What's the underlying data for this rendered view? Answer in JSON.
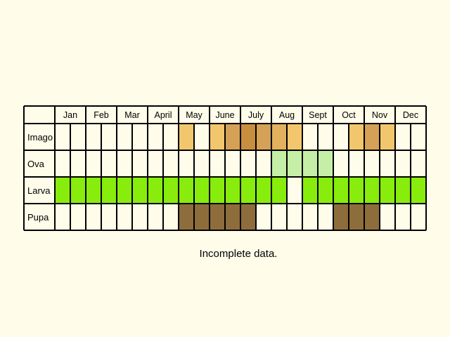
{
  "months": [
    "Jan",
    "Feb",
    "Mar",
    "April",
    "May",
    "June",
    "July",
    "Aug",
    "Sept",
    "Oct",
    "Nov",
    "Dec"
  ],
  "rows": [
    {
      "label": "Imago",
      "segments": [
        {
          "slot": 8,
          "color": "#f2c66c"
        },
        {
          "slot": 10,
          "color": "#f2c66c"
        },
        {
          "slot": 11,
          "color": "#d4a157"
        },
        {
          "slot": 12,
          "color": "#c88e3f"
        },
        {
          "slot": 13,
          "color": "#d4a157"
        },
        {
          "slot": 14,
          "color": "#e3b05e"
        },
        {
          "slot": 15,
          "color": "#f2c66c"
        },
        {
          "slot": 19,
          "color": "#f2c66c"
        },
        {
          "slot": 20,
          "color": "#d4a157"
        },
        {
          "slot": 21,
          "color": "#f2c66c"
        }
      ]
    },
    {
      "label": "Ova",
      "segments": [
        {
          "slot": 14,
          "color": "#c5eea6"
        },
        {
          "slot": 15,
          "color": "#c5eea6"
        },
        {
          "slot": 16,
          "color": "#c5eea6"
        },
        {
          "slot": 17,
          "color": "#c5eea6"
        }
      ]
    },
    {
      "label": "Larva",
      "segments": [
        {
          "slot": 0,
          "color": "#88ec0c"
        },
        {
          "slot": 1,
          "color": "#88ec0c"
        },
        {
          "slot": 2,
          "color": "#88ec0c"
        },
        {
          "slot": 3,
          "color": "#88ec0c"
        },
        {
          "slot": 4,
          "color": "#88ec0c"
        },
        {
          "slot": 5,
          "color": "#88ec0c"
        },
        {
          "slot": 6,
          "color": "#88ec0c"
        },
        {
          "slot": 7,
          "color": "#88ec0c"
        },
        {
          "slot": 8,
          "color": "#88ec0c"
        },
        {
          "slot": 9,
          "color": "#88ec0c"
        },
        {
          "slot": 10,
          "color": "#88ec0c"
        },
        {
          "slot": 11,
          "color": "#88ec0c"
        },
        {
          "slot": 12,
          "color": "#88ec0c"
        },
        {
          "slot": 13,
          "color": "#88ec0c"
        },
        {
          "slot": 14,
          "color": "#88ec0c"
        },
        {
          "slot": 16,
          "color": "#88ec0c"
        },
        {
          "slot": 17,
          "color": "#88ec0c"
        },
        {
          "slot": 18,
          "color": "#88ec0c"
        },
        {
          "slot": 19,
          "color": "#88ec0c"
        },
        {
          "slot": 20,
          "color": "#88ec0c"
        },
        {
          "slot": 21,
          "color": "#88ec0c"
        },
        {
          "slot": 22,
          "color": "#88ec0c"
        },
        {
          "slot": 23,
          "color": "#88ec0c"
        }
      ]
    },
    {
      "label": "Pupa",
      "segments": [
        {
          "slot": 8,
          "color": "#8e6d3c"
        },
        {
          "slot": 9,
          "color": "#8e6d3c"
        },
        {
          "slot": 10,
          "color": "#8e6d3c"
        },
        {
          "slot": 11,
          "color": "#8e6d3c"
        },
        {
          "slot": 12,
          "color": "#8e6d3c"
        },
        {
          "slot": 18,
          "color": "#8e6d3c"
        },
        {
          "slot": 19,
          "color": "#8e6d3c"
        },
        {
          "slot": 20,
          "color": "#8e6d3c"
        }
      ]
    }
  ],
  "caption": "Incomplete data."
}
